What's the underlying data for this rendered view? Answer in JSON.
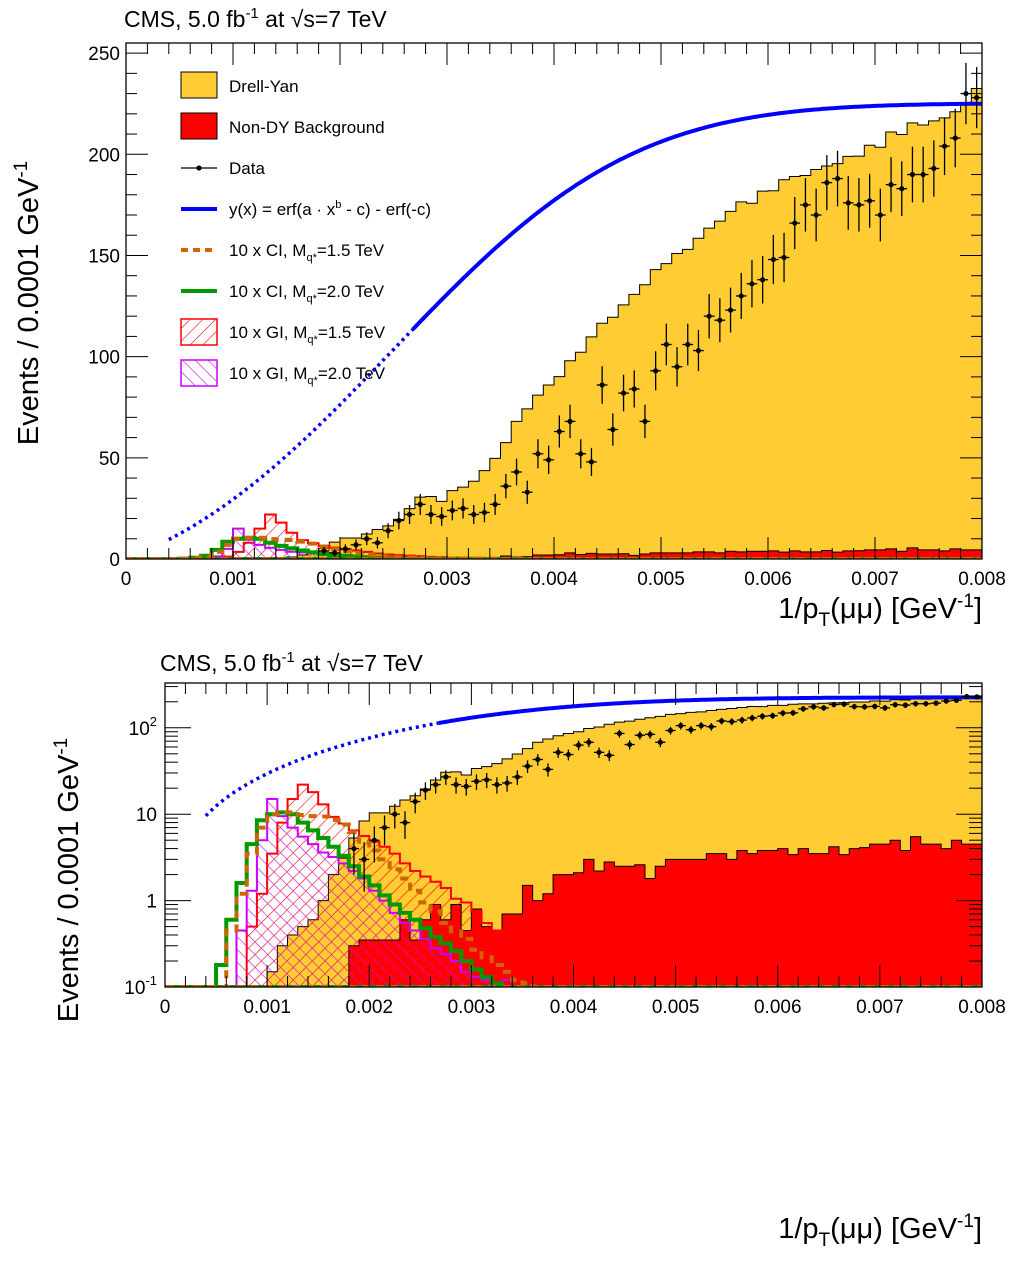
{
  "chart_data": [
    {
      "type": "histogram",
      "scale": "linear",
      "title": {
        "prefix": "CMS, 5.0 fb",
        "lumi_exp": "-1",
        "mid": " at ",
        "sqrt": "√s",
        "suffix": "=7 TeV"
      },
      "ylabel": {
        "main": "Events / 0.0001 GeV",
        "exp": "-1"
      },
      "xlabel": {
        "pre": "1/p",
        "sub": "T",
        "post": "(μμ) [GeV",
        "exp": "-1",
        "close": "]"
      },
      "xlim": [
        0,
        0.008
      ],
      "ylim": [
        0,
        255
      ],
      "xticks": [
        "0",
        "0.001",
        "0.002",
        "0.003",
        "0.004",
        "0.005",
        "0.006",
        "0.007",
        "0.008"
      ],
      "yticks": [
        "0",
        "50",
        "100",
        "150",
        "200",
        "250"
      ],
      "legend": [
        {
          "label": "Drell-Yan",
          "style": "fill-yellow"
        },
        {
          "label": "Non-DY Background",
          "style": "fill-red"
        },
        {
          "label": "Data",
          "style": "marker"
        },
        {
          "label": "y(x) = erf(a · x",
          "exp": "b",
          "tail": " - c) - erf(-c)",
          "style": "line-blue"
        },
        {
          "label": "10 x CI, M",
          "sub": "q*",
          "tail": "=1.5 TeV",
          "style": "dash-orange"
        },
        {
          "label": "10 x CI, M",
          "sub": "q*",
          "tail": "=2.0 TeV",
          "style": "line-green"
        },
        {
          "label": "10 x GI, M",
          "sub": "q*",
          "tail": "=1.5 TeV",
          "style": "hatch-red"
        },
        {
          "label": "10 x GI, M",
          "sub": "q*",
          "tail": "=2.0 TeV",
          "style": "hatch-magenta"
        }
      ]
    },
    {
      "type": "histogram",
      "scale": "log",
      "title": {
        "prefix": "CMS, 5.0 fb",
        "lumi_exp": "-1",
        "mid": " at ",
        "sqrt": "√s",
        "suffix": "=7 TeV"
      },
      "ylabel": {
        "main": "Events / 0.0001 GeV",
        "exp": "-1"
      },
      "xlabel": {
        "pre": "1/p",
        "sub": "T",
        "post": "(μμ) [GeV",
        "exp": "-1",
        "close": "]"
      },
      "xlim": [
        0,
        0.008
      ],
      "ylim": [
        0.1,
        330
      ],
      "xticks": [
        "0",
        "0.001",
        "0.002",
        "0.003",
        "0.004",
        "0.005",
        "0.006",
        "0.007",
        "0.008"
      ],
      "yticks": [
        {
          "v": 0.1,
          "base": "10",
          "exp": "-1"
        },
        {
          "v": 1,
          "base": "1",
          "exp": ""
        },
        {
          "v": 10,
          "base": "10",
          "exp": ""
        },
        {
          "v": 100,
          "base": "10",
          "exp": "2"
        }
      ]
    }
  ],
  "series": {
    "bin_width": 0.0001,
    "drell_yan": [
      0,
      0,
      0,
      0,
      0,
      0,
      0,
      0,
      0,
      0,
      0.15,
      0.3,
      0.4,
      0.5,
      0.6,
      1,
      2,
      3,
      5,
      8,
      10,
      10,
      12,
      14,
      16,
      19,
      24,
      30,
      30,
      28,
      33,
      35,
      38,
      43,
      49,
      56,
      67,
      73,
      79,
      84,
      88,
      95,
      100,
      107,
      114,
      117,
      123,
      129,
      133,
      140,
      143,
      148,
      150,
      155,
      160,
      164,
      168,
      173,
      172,
      178,
      178,
      184,
      185,
      186,
      189,
      190,
      192,
      195,
      195,
      200,
      199,
      206,
      206,
      210,
      210,
      212,
      214,
      216,
      220,
      228
    ],
    "non_dy": [
      0,
      0,
      0,
      0,
      0,
      0,
      0,
      0,
      0,
      0,
      0,
      0,
      0,
      0,
      0,
      0,
      0,
      0.1,
      0.3,
      0.35,
      0.35,
      0.35,
      0.35,
      0.6,
      0.35,
      0.6,
      0.9,
      0.6,
      0.9,
      0.45,
      0.8,
      0.5,
      0.45,
      0.7,
      0.7,
      1.5,
      1,
      1.2,
      2,
      2,
      2.1,
      3,
      2.2,
      2.8,
      2.5,
      2.5,
      2.6,
      1.8,
      2.5,
      3,
      3,
      3,
      3,
      3.5,
      3.5,
      3,
      3.8,
      3.5,
      3.8,
      3.8,
      4,
      3.4,
      4,
      3.5,
      3.5,
      4.2,
      3.4,
      4,
      4.1,
      4.5,
      4.5,
      5,
      3.8,
      5.5,
      4.5,
      4.5,
      4,
      5,
      4.5,
      4.5
    ],
    "ci15": [
      0,
      0,
      0,
      0,
      0,
      0.1,
      0.45,
      1.2,
      3.5,
      7,
      10,
      10.5,
      10.5,
      9.8,
      9.5,
      9.4,
      8.6,
      7.6,
      6.2,
      4.8,
      3.8,
      3,
      2.3,
      1.8,
      1.3,
      0.95,
      0.75,
      0.55,
      0.44,
      0.36,
      0.27,
      0.22,
      0.18,
      0.15,
      0.12,
      0.11,
      0.09,
      0.08,
      0.07,
      0.06,
      0.05,
      0.04,
      0.03,
      0,
      0,
      0,
      0,
      0,
      0,
      0,
      0,
      0,
      0,
      0,
      0,
      0,
      0,
      0,
      0,
      0,
      0,
      0,
      0,
      0,
      0,
      0,
      0,
      0,
      0,
      0,
      0,
      0,
      0,
      0,
      0,
      0,
      0,
      0,
      0,
      0
    ],
    "ci20": [
      0,
      0,
      0,
      0,
      0,
      0.18,
      0.6,
      1.6,
      4.5,
      8.5,
      10,
      10.5,
      10,
      8,
      6.5,
      5.3,
      4.2,
      3.3,
      2.5,
      1.9,
      1.5,
      1.15,
      0.9,
      0.72,
      0.6,
      0.48,
      0.38,
      0.32,
      0.26,
      0.2,
      0.16,
      0.13,
      0.11,
      0.09,
      0.07,
      0.05,
      0.04,
      0,
      0,
      0,
      0,
      0,
      0,
      0,
      0,
      0,
      0,
      0,
      0,
      0,
      0,
      0,
      0,
      0,
      0,
      0,
      0,
      0,
      0,
      0,
      0,
      0,
      0,
      0,
      0,
      0,
      0,
      0,
      0,
      0,
      0,
      0,
      0,
      0,
      0,
      0,
      0,
      0,
      0,
      0
    ],
    "gi15": [
      0,
      0,
      0,
      0,
      0,
      0,
      0,
      0.1,
      0.5,
      1.2,
      3.5,
      8,
      15,
      22,
      18,
      13,
      9.3,
      7.8,
      6.5,
      5.6,
      4.8,
      4.2,
      3.5,
      2.7,
      2.2,
      1.9,
      1.65,
      1.4,
      1.05,
      0.95,
      0.75,
      0.55,
      0.45,
      0.35,
      0.28,
      0.22,
      0.16,
      0.13,
      0.1,
      0,
      0,
      0,
      0,
      0,
      0,
      0,
      0,
      0,
      0,
      0,
      0,
      0,
      0,
      0,
      0,
      0,
      0,
      0,
      0,
      0,
      0,
      0,
      0,
      0,
      0,
      0,
      0,
      0,
      0,
      0,
      0,
      0,
      0,
      0,
      0,
      0,
      0,
      0,
      0,
      0
    ],
    "gi20": [
      0,
      0,
      0,
      0,
      0,
      0,
      0.1,
      0.45,
      1.3,
      5,
      15,
      9.5,
      7,
      5.5,
      4.5,
      3.6,
      3.2,
      2.7,
      2.2,
      1.8,
      1.3,
      1,
      0.72,
      0.55,
      0.45,
      0.36,
      0.28,
      0.24,
      0.2,
      0.15,
      0.13,
      0.12,
      0.11,
      0.12,
      0.1,
      0.08,
      0.06,
      0.05,
      0.1,
      0.1,
      0,
      0,
      0,
      0,
      0,
      0,
      0,
      0,
      0,
      0,
      0,
      0,
      0,
      0,
      0,
      0,
      0,
      0,
      0,
      0,
      0,
      0,
      0,
      0,
      0,
      0,
      0,
      0,
      0,
      0,
      0,
      0,
      0,
      0,
      0,
      0,
      0,
      0,
      0,
      0
    ],
    "data": [
      0,
      0,
      0,
      0,
      0,
      0,
      0,
      0,
      0,
      0,
      0,
      0,
      0,
      0,
      0,
      0,
      0,
      0,
      4,
      3,
      5,
      7,
      10,
      8,
      14,
      19,
      22,
      27,
      22,
      21,
      24,
      25,
      22,
      23,
      27,
      36,
      43,
      33,
      52,
      49,
      63,
      68,
      52,
      48,
      86,
      64,
      82,
      84,
      68,
      93,
      106,
      95,
      106,
      103,
      120,
      118,
      123,
      130,
      136,
      138,
      148,
      149,
      166,
      175,
      170,
      186,
      188,
      176,
      175,
      177,
      170,
      185,
      183,
      190,
      190,
      193,
      204,
      208,
      230,
      228
    ],
    "fit": {
      "a": 400,
      "b": 1,
      "c": 0.995,
      "norm": 225
    }
  }
}
